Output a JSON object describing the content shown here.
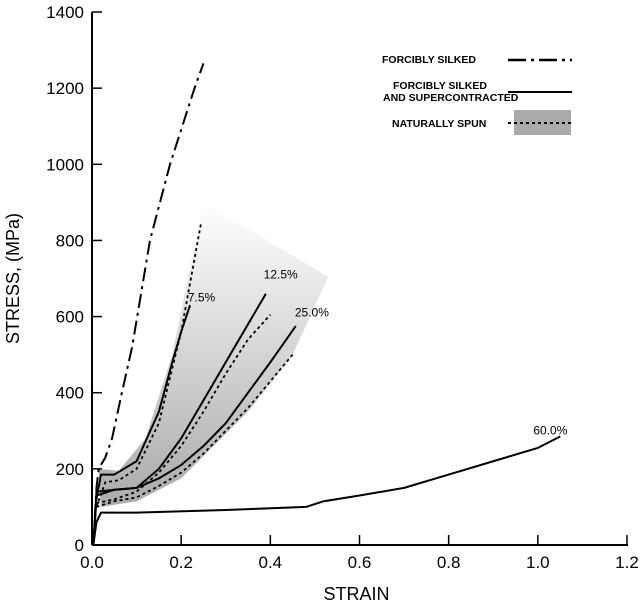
{
  "chart_data": {
    "type": "line",
    "title": "",
    "xlabel": "STRAIN",
    "ylabel": "STRESS, (MPa)",
    "xlim": [
      0,
      1.2
    ],
    "ylim": [
      0,
      1400
    ],
    "xticks": [
      0.0,
      0.2,
      0.4,
      0.6,
      0.8,
      1.0,
      1.2
    ],
    "xtick_labels": [
      "0.0",
      "0.2",
      "0.4",
      "0.6",
      "0.8",
      "1.0",
      "1.2"
    ],
    "yticks": [
      0,
      200,
      400,
      600,
      800,
      1000,
      1200,
      1400
    ],
    "ytick_labels": [
      "0",
      "200",
      "400",
      "600",
      "800",
      "1000",
      "1200",
      "1400"
    ],
    "grid": false,
    "legend_position": "top-right",
    "legend": [
      {
        "label": "FORCIBLY SILKED",
        "style": "dash-dot"
      },
      {
        "label_lines": [
          "FORCIBLY SILKED",
          "AND SUPERCONTRACTED"
        ],
        "style": "solid"
      },
      {
        "label": "NATURALLY SPUN",
        "style": "dotted",
        "band": true
      }
    ],
    "band_color": "#aaaaaa",
    "band": {
      "name": "naturally-spun-range",
      "x": [
        0.015,
        0.06,
        0.12,
        0.18,
        0.25,
        0.53,
        0.45,
        0.35,
        0.2,
        0.1,
        0.02
      ],
      "y": [
        200,
        195,
        280,
        500,
        900,
        705,
        500,
        350,
        175,
        115,
        100
      ]
    },
    "series": [
      {
        "name": "forcibly-silked",
        "style": "dash-dot",
        "x": [
          0.003,
          0.01,
          0.015,
          0.03,
          0.045,
          0.067,
          0.09,
          0.13,
          0.175,
          0.23,
          0.25
        ],
        "y": [
          0,
          150,
          200,
          230,
          280,
          400,
          520,
          800,
          1000,
          1200,
          1265
        ]
      },
      {
        "name": "supercontracted-7.5",
        "style": "solid",
        "x": [
          0.003,
          0.01,
          0.02,
          0.05,
          0.1,
          0.15,
          0.18,
          0.2,
          0.22
        ],
        "y": [
          0,
          120,
          185,
          185,
          220,
          350,
          480,
          560,
          630
        ]
      },
      {
        "name": "supercontracted-12.5",
        "style": "solid",
        "x": [
          0.003,
          0.01,
          0.05,
          0.1,
          0.15,
          0.2,
          0.25,
          0.3,
          0.35,
          0.39
        ],
        "y": [
          0,
          140,
          145,
          150,
          200,
          280,
          380,
          480,
          580,
          660
        ]
      },
      {
        "name": "supercontracted-25.0",
        "style": "solid",
        "x": [
          0.003,
          0.01,
          0.05,
          0.1,
          0.15,
          0.2,
          0.25,
          0.3,
          0.35,
          0.4,
          0.457
        ],
        "y": [
          0,
          130,
          145,
          150,
          175,
          210,
          260,
          320,
          400,
          480,
          575
        ]
      },
      {
        "name": "supercontracted-60.0",
        "style": "solid",
        "x": [
          0.003,
          0.01,
          0.02,
          0.1,
          0.3,
          0.48,
          0.52,
          0.6,
          0.7,
          0.8,
          0.9,
          1.0,
          1.05
        ],
        "y": [
          0,
          60,
          85,
          85,
          92,
          100,
          115,
          130,
          150,
          185,
          220,
          255,
          285
        ]
      },
      {
        "name": "naturally-spun-1",
        "style": "dotted",
        "x": [
          0.01,
          0.03,
          0.06,
          0.1,
          0.15,
          0.2,
          0.245
        ],
        "y": [
          100,
          165,
          170,
          200,
          320,
          560,
          848
        ]
      },
      {
        "name": "naturally-spun-2",
        "style": "dotted",
        "x": [
          0.01,
          0.05,
          0.1,
          0.15,
          0.2,
          0.25,
          0.3,
          0.35,
          0.4
        ],
        "y": [
          110,
          120,
          140,
          190,
          260,
          350,
          450,
          540,
          605
        ]
      },
      {
        "name": "naturally-spun-3",
        "style": "dotted",
        "x": [
          0.01,
          0.05,
          0.1,
          0.15,
          0.2,
          0.25,
          0.3,
          0.35,
          0.4,
          0.45
        ],
        "y": [
          100,
          115,
          125,
          155,
          190,
          240,
          300,
          360,
          430,
          500
        ]
      }
    ],
    "annotations": [
      {
        "text": "7.5%",
        "x": 0.215,
        "y": 640
      },
      {
        "text": "12.5%",
        "x": 0.385,
        "y": 700
      },
      {
        "text": "25.0%",
        "x": 0.455,
        "y": 600
      },
      {
        "text": "60.0%",
        "x": 0.99,
        "y": 290
      }
    ]
  }
}
